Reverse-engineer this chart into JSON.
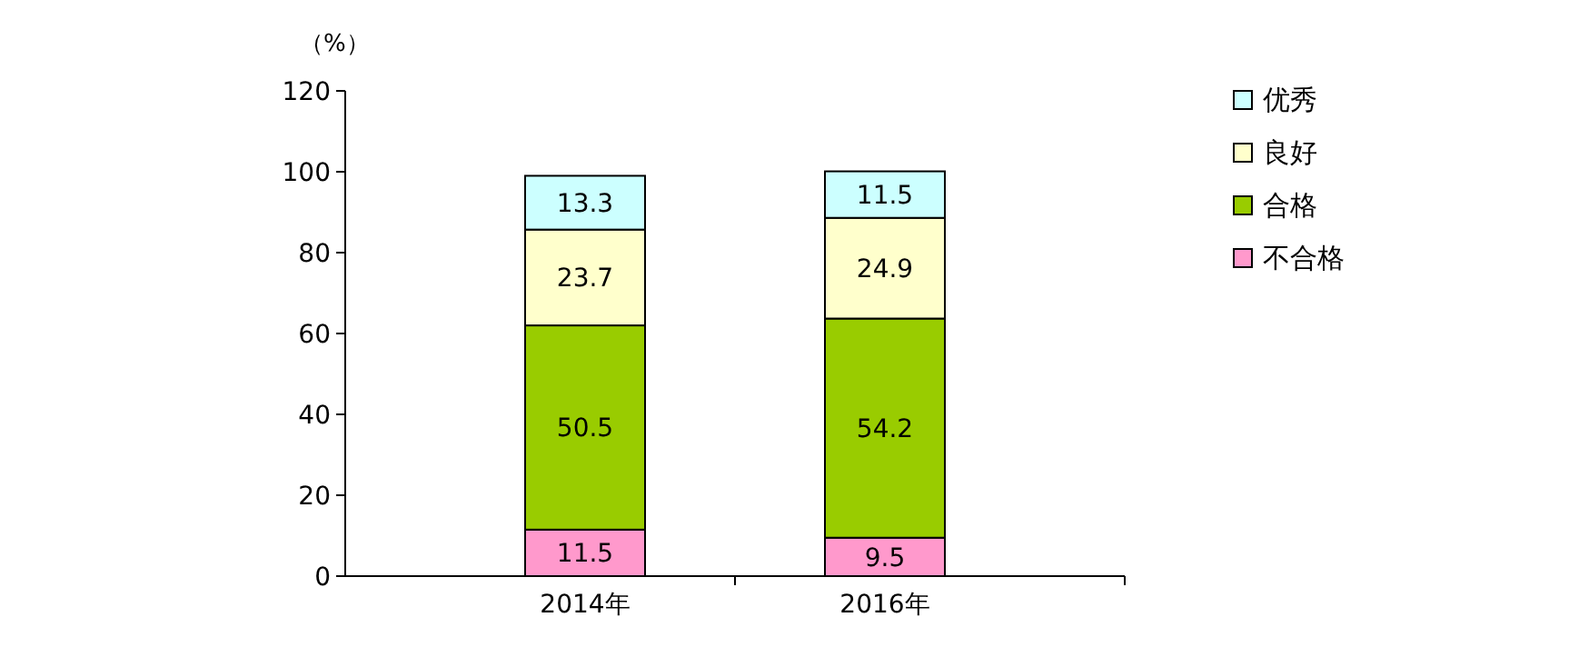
{
  "chart_data": {
    "type": "bar",
    "stacked": true,
    "ylabel": "（%）",
    "categories": [
      "2014年",
      "2016年"
    ],
    "series": [
      {
        "name": "不合格",
        "color": "#ff99cc",
        "values": [
          11.5,
          9.5
        ]
      },
      {
        "name": "合格",
        "color": "#99cc00",
        "values": [
          50.5,
          54.2
        ]
      },
      {
        "name": "良好",
        "color": "#ffffcc",
        "values": [
          23.7,
          24.9
        ]
      },
      {
        "name": "优秀",
        "color": "#ccffff",
        "values": [
          13.3,
          11.5
        ]
      }
    ],
    "ylim": [
      0,
      120
    ],
    "yticks": [
      0,
      20,
      40,
      60,
      80,
      100,
      120
    ],
    "data_labels": true,
    "legend": "top right",
    "grid": false
  }
}
